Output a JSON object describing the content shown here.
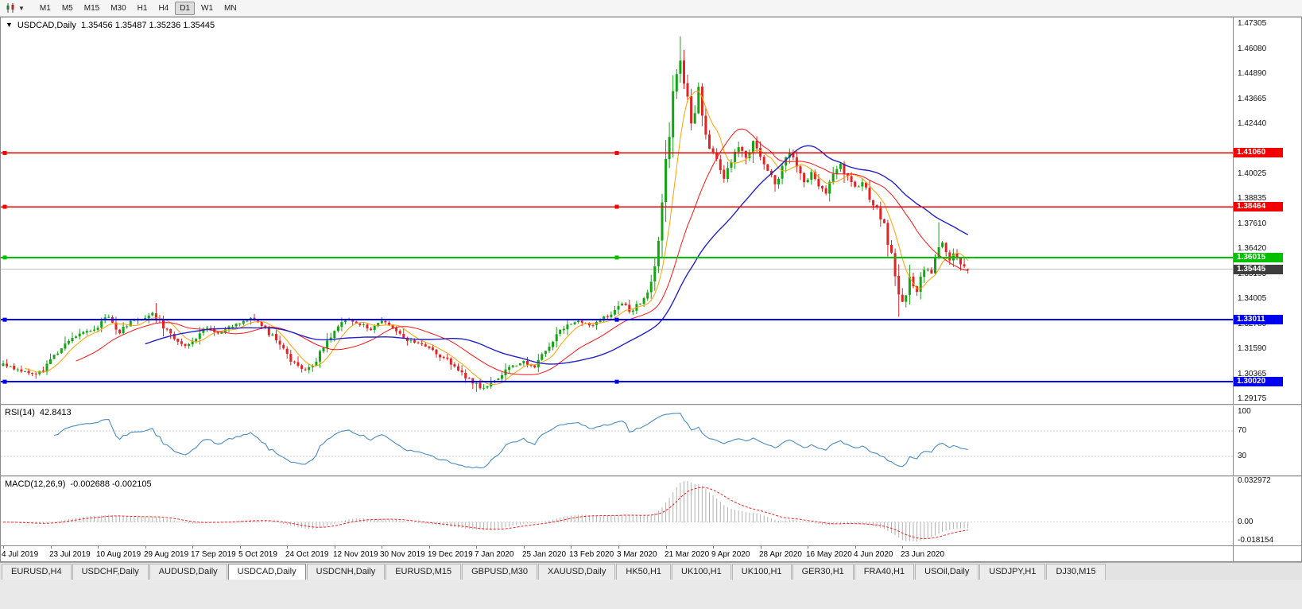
{
  "colors": {
    "bull": "#13a513",
    "bear": "#e32424",
    "chart_bg": "#ffffff"
  },
  "toolbar": {
    "timeframes": [
      "M1",
      "M5",
      "M15",
      "M30",
      "H1",
      "H4",
      "D1",
      "W1",
      "MN"
    ],
    "active_timeframe": "D1"
  },
  "window_title": {
    "dropdown_icon": "▼",
    "symbol": "USDCAD,Daily",
    "ohlc": "1.35456 1.35487 1.35236 1.35445"
  },
  "chart_data": {
    "type": "candlestick",
    "symbol": "USDCAD",
    "period": "Daily",
    "price_range": [
      1.2895,
      1.476
    ],
    "candle_count": 266,
    "close_anchors": [
      [
        0,
        1.309
      ],
      [
        4,
        1.3062
      ],
      [
        8,
        1.3035
      ],
      [
        11,
        1.306
      ],
      [
        14,
        1.313
      ],
      [
        18,
        1.32
      ],
      [
        22,
        1.324
      ],
      [
        26,
        1.327
      ],
      [
        29,
        1.332
      ],
      [
        32,
        1.324
      ],
      [
        35,
        1.329
      ],
      [
        38,
        1.33
      ],
      [
        41,
        1.334
      ],
      [
        44,
        1.327
      ],
      [
        47,
        1.321
      ],
      [
        50,
        1.317
      ],
      [
        53,
        1.322
      ],
      [
        56,
        1.3265
      ],
      [
        59,
        1.323
      ],
      [
        62,
        1.326
      ],
      [
        65,
        1.329
      ],
      [
        68,
        1.331
      ],
      [
        71,
        1.327
      ],
      [
        74,
        1.322
      ],
      [
        77,
        1.316
      ],
      [
        80,
        1.3085
      ],
      [
        83,
        1.3055
      ],
      [
        86,
        1.31
      ],
      [
        89,
        1.32
      ],
      [
        92,
        1.327
      ],
      [
        95,
        1.3305
      ],
      [
        98,
        1.328
      ],
      [
        101,
        1.3255
      ],
      [
        104,
        1.329
      ],
      [
        107,
        1.326
      ],
      [
        110,
        1.321
      ],
      [
        113,
        1.319
      ],
      [
        116,
        1.3165
      ],
      [
        119,
        1.314
      ],
      [
        122,
        1.3105
      ],
      [
        125,
        1.306
      ],
      [
        128,
        1.301
      ],
      [
        131,
        1.2975
      ],
      [
        134,
        1.299
      ],
      [
        137,
        1.304
      ],
      [
        140,
        1.308
      ],
      [
        143,
        1.31
      ],
      [
        146,
        1.307
      ],
      [
        149,
        1.315
      ],
      [
        152,
        1.323
      ],
      [
        155,
        1.328
      ],
      [
        158,
        1.33
      ],
      [
        161,
        1.327
      ],
      [
        164,
        1.33
      ],
      [
        167,
        1.333
      ],
      [
        170,
        1.3385
      ],
      [
        172,
        1.334
      ],
      [
        174,
        1.337
      ],
      [
        176,
        1.34
      ],
      [
        178,
        1.346
      ],
      [
        180,
        1.364
      ],
      [
        182,
        1.402
      ],
      [
        184,
        1.438
      ],
      [
        185,
        1.45
      ],
      [
        186,
        1.456
      ],
      [
        187,
        1.445
      ],
      [
        188,
        1.436
      ],
      [
        189,
        1.425
      ],
      [
        190,
        1.433
      ],
      [
        191,
        1.442
      ],
      [
        192,
        1.43
      ],
      [
        193,
        1.419
      ],
      [
        194,
        1.413
      ],
      [
        196,
        1.406
      ],
      [
        198,
        1.398
      ],
      [
        200,
        1.406
      ],
      [
        202,
        1.414
      ],
      [
        204,
        1.408
      ],
      [
        206,
        1.416
      ],
      [
        208,
        1.41
      ],
      [
        210,
        1.402
      ],
      [
        212,
        1.396
      ],
      [
        214,
        1.404
      ],
      [
        216,
        1.411
      ],
      [
        218,
        1.403
      ],
      [
        220,
        1.396
      ],
      [
        222,
        1.402
      ],
      [
        224,
        1.395
      ],
      [
        226,
        1.391
      ],
      [
        228,
        1.399
      ],
      [
        230,
        1.405
      ],
      [
        232,
        1.399
      ],
      [
        234,
        1.394
      ],
      [
        236,
        1.396
      ],
      [
        238,
        1.389
      ],
      [
        240,
        1.384
      ],
      [
        242,
        1.376
      ],
      [
        244,
        1.36
      ],
      [
        246,
        1.342
      ],
      [
        247,
        1.338
      ],
      [
        249,
        1.35
      ],
      [
        251,
        1.344
      ],
      [
        253,
        1.355
      ],
      [
        255,
        1.352
      ],
      [
        257,
        1.364
      ],
      [
        258,
        1.368
      ],
      [
        259,
        1.362
      ],
      [
        260,
        1.358
      ],
      [
        261,
        1.363
      ],
      [
        262,
        1.36
      ],
      [
        263,
        1.3575
      ],
      [
        264,
        1.356
      ],
      [
        265,
        1.35445
      ]
    ],
    "high_overrides": [
      [
        42,
        1.3382
      ],
      [
        186,
        1.4669
      ],
      [
        257,
        1.3772
      ]
    ],
    "low_overrides": [
      [
        9,
        1.3016
      ],
      [
        130,
        1.2952
      ],
      [
        246,
        1.3316
      ]
    ],
    "last_candle": {
      "open": 1.35456,
      "high": 1.35487,
      "low": 1.35236,
      "close": 1.35445
    },
    "y_ticks": [
      "1.47305",
      "1.46080",
      "1.44890",
      "1.43665",
      "1.42440",
      "1.40025",
      "1.38835",
      "1.37610",
      "1.36420",
      "1.35195",
      "1.34005",
      "1.32780",
      "1.31590",
      "1.30365",
      "1.29175"
    ],
    "x_labels": [
      "4 Jul 2019",
      "23 Jul 2019",
      "10 Aug 2019",
      "29 Aug 2019",
      "17 Sep 2019",
      "5 Oct 2019",
      "24 Oct 2019",
      "12 Nov 2019",
      "30 Nov 2019",
      "19 Dec 2019",
      "7 Jan 2020",
      "25 Jan 2020",
      "13 Feb 2020",
      "3 Mar 2020",
      "21 Mar 2020",
      "9 Apr 2020",
      "28 Apr 2020",
      "16 May 2020",
      "4 Jun 2020",
      "23 Jun 2020"
    ],
    "hlines": [
      {
        "price": 1.4106,
        "label": "1.41060",
        "color": "#f40000",
        "width": 1.6
      },
      {
        "price": 1.38464,
        "label": "1.38464",
        "color": "#f40000",
        "width": 1.6
      },
      {
        "price": 1.36015,
        "label": "1.36015",
        "color": "#00c000",
        "width": 2
      },
      {
        "price": 1.33011,
        "label": "1.33011",
        "color": "#0000f0",
        "width": 2
      },
      {
        "price": 1.3002,
        "label": "1.30020",
        "color": "#0000f0",
        "width": 2
      }
    ],
    "current_price": {
      "price": 1.35445,
      "label": "1.35445",
      "bg": "#3d3d3d"
    },
    "moving_averages": [
      {
        "period": 7,
        "color": "#ffa000",
        "width": 1
      },
      {
        "period": 21,
        "color": "#ff1414",
        "width": 1
      },
      {
        "period": 40,
        "color": "#2222cc",
        "width": 1.4
      }
    ],
    "indicators": [
      {
        "id": "rsi",
        "name": "RSI(14)",
        "value": "42.8413",
        "period": 14,
        "scale": [
          0,
          110
        ],
        "levels": [
          100,
          70,
          30
        ],
        "level_labels": [
          "100",
          "70",
          "30"
        ],
        "line_color": "#4a8bc2"
      },
      {
        "id": "macd",
        "name": "MACD(12,26,9)",
        "value": "-0.002688 -0.002105",
        "fast": 12,
        "slow": 26,
        "signal": 9,
        "axis_labels": [
          "0.032972",
          "0.00",
          "-0.018154"
        ],
        "hist_color": "#b0b0b0",
        "signal_color": "#ff2020"
      }
    ]
  },
  "tabs": {
    "active_index": 3,
    "items": [
      "EURUSD,H4",
      "USDCHF,Daily",
      "AUDUSD,Daily",
      "USDCAD,Daily",
      "USDCNH,Daily",
      "EURUSD,M15",
      "GBPUSD,M30",
      "XAUUSD,Daily",
      "HK50,H1",
      "UK100,H1",
      "UK100,H1",
      "GER30,H1",
      "FRA40,H1",
      "USOil,Daily",
      "USDJPY,H1",
      "DJ30,M15"
    ]
  }
}
